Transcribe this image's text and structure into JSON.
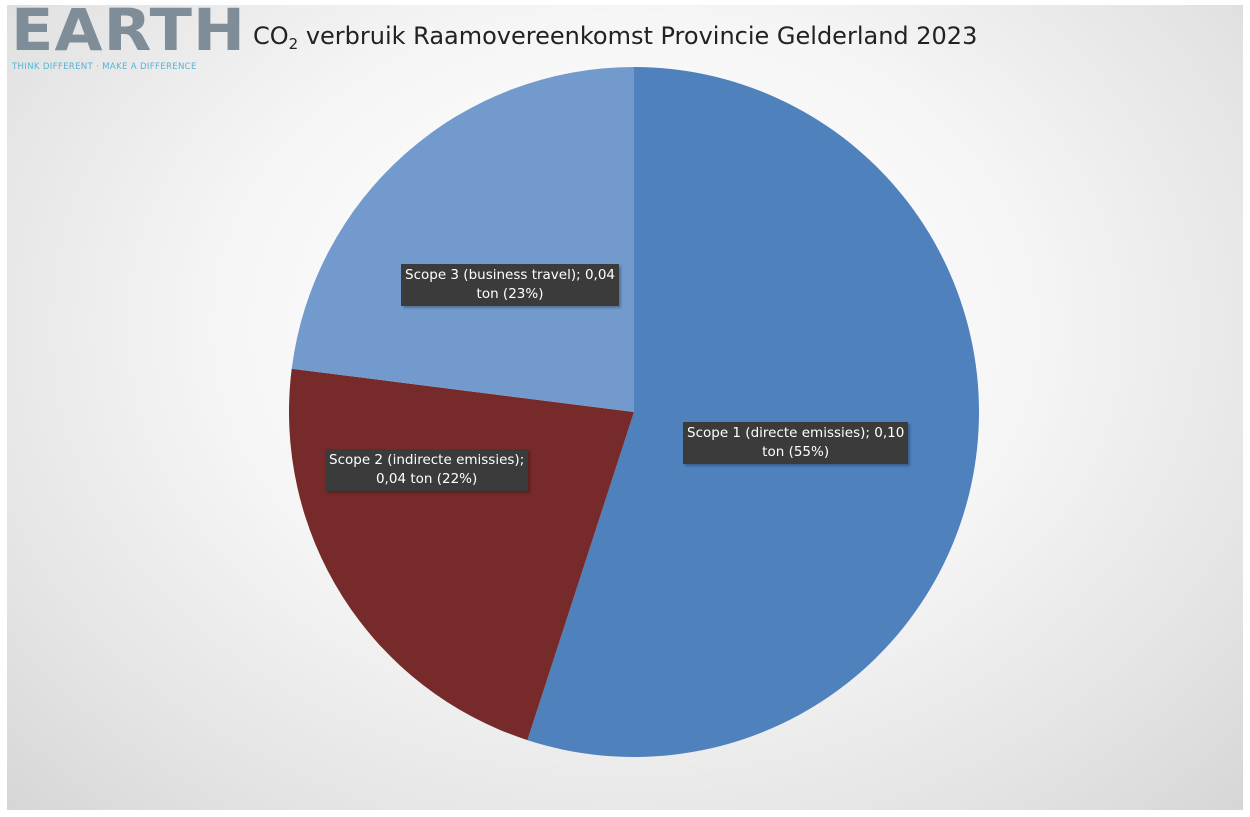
{
  "logo": {
    "word": "EARTH",
    "tagline": "THINK DIFFERENT · MAKE A DIFFERENCE"
  },
  "chart_data": {
    "type": "pie",
    "title_main": "CO",
    "title_sub": "2",
    "title_rest": " verbruik Raamovereenkomst Provincie Gelderland 2023",
    "slices": [
      {
        "label": "Scope 1 (directe emissies)",
        "percent": 55,
        "color": "#4f81bd",
        "data_label_line1": "Scope 1 (directe emissies); 0,10",
        "data_label_line2": "ton (55%)"
      },
      {
        "label": "Scope 2 (indirecte emissies)",
        "percent": 22,
        "color": "#772a2a",
        "data_label_line1": "Scope 2 (indirecte emissies);",
        "data_label_line2": "0,04 ton (22%)"
      },
      {
        "label": "Scope 3 (business travel)",
        "percent": 23,
        "color": "#729acc",
        "data_label_line1": "Scope 3 (business travel); 0,04",
        "data_label_line2": "ton (23%)"
      }
    ]
  }
}
